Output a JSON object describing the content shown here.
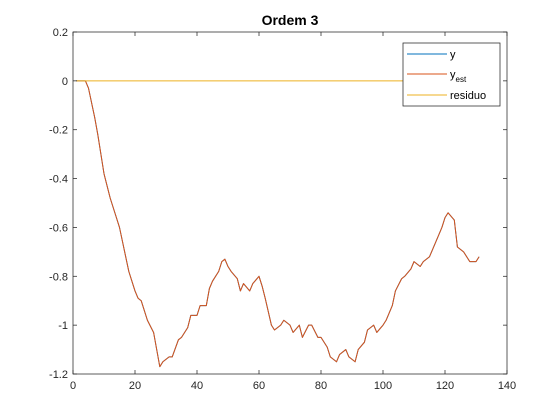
{
  "chart_data": {
    "type": "line",
    "title": "Ordem 3",
    "xlabel": "",
    "ylabel": "",
    "xlim": [
      0,
      140
    ],
    "ylim": [
      -1.2,
      0.2
    ],
    "xticks": [
      0,
      20,
      40,
      60,
      80,
      100,
      120,
      140
    ],
    "xtick_labels": [
      "0",
      "20",
      "40",
      "60",
      "80",
      "100",
      "120",
      "140"
    ],
    "yticks": [
      0.2,
      0,
      -0.2,
      -0.4,
      -0.6,
      -0.8,
      -1,
      -1.2
    ],
    "ytick_labels": [
      "0.2",
      "0",
      "-0.2",
      "-0.4",
      "-0.6",
      "-0.8",
      "-1",
      "-1.2"
    ],
    "grid": false,
    "legend_position": "top-right",
    "x": [
      1,
      4,
      5,
      7,
      8,
      10,
      12,
      14,
      15,
      17,
      18,
      20,
      21,
      22,
      24,
      26,
      27,
      28,
      29,
      31,
      32,
      34,
      35,
      37,
      38,
      40,
      41,
      43,
      44,
      45,
      47,
      48,
      49,
      50,
      51,
      53,
      54,
      55,
      57,
      58,
      60,
      61,
      62,
      64,
      65,
      67,
      68,
      70,
      71,
      73,
      74,
      76,
      77,
      79,
      80,
      82,
      83,
      85,
      86,
      88,
      89,
      91,
      92,
      94,
      95,
      97,
      98,
      100,
      101,
      103,
      104,
      106,
      107,
      109,
      110,
      112,
      113,
      115,
      116,
      118,
      119,
      120,
      121,
      123,
      124,
      126,
      127,
      128,
      130,
      131
    ],
    "series": [
      {
        "name": "y",
        "color": "#0072BD",
        "values": [
          0,
          0,
          -0.03,
          -0.15,
          -0.22,
          -0.38,
          -0.48,
          -0.56,
          -0.6,
          -0.72,
          -0.78,
          -0.86,
          -0.89,
          -0.9,
          -0.98,
          -1.03,
          -1.1,
          -1.17,
          -1.15,
          -1.13,
          -1.13,
          -1.06,
          -1.05,
          -1.01,
          -0.96,
          -0.96,
          -0.92,
          -0.92,
          -0.85,
          -0.82,
          -0.78,
          -0.74,
          -0.73,
          -0.76,
          -0.78,
          -0.81,
          -0.86,
          -0.83,
          -0.86,
          -0.83,
          -0.8,
          -0.84,
          -0.89,
          -1.0,
          -1.02,
          -1.0,
          -0.98,
          -1.0,
          -1.03,
          -1.0,
          -1.05,
          -1.0,
          -1.0,
          -1.05,
          -1.05,
          -1.09,
          -1.13,
          -1.15,
          -1.12,
          -1.1,
          -1.13,
          -1.15,
          -1.1,
          -1.07,
          -1.02,
          -1.0,
          -1.03,
          -1.0,
          -0.98,
          -0.92,
          -0.86,
          -0.81,
          -0.8,
          -0.77,
          -0.74,
          -0.76,
          -0.74,
          -0.72,
          -0.69,
          -0.63,
          -0.6,
          -0.56,
          -0.54,
          -0.57,
          -0.68,
          -0.7,
          -0.72,
          -0.74,
          -0.74,
          -0.72
        ]
      },
      {
        "name": "y_est",
        "color": "#D95319",
        "values": [
          0,
          0,
          -0.03,
          -0.15,
          -0.22,
          -0.38,
          -0.48,
          -0.56,
          -0.6,
          -0.72,
          -0.78,
          -0.86,
          -0.89,
          -0.9,
          -0.98,
          -1.03,
          -1.1,
          -1.17,
          -1.15,
          -1.13,
          -1.13,
          -1.06,
          -1.05,
          -1.01,
          -0.96,
          -0.96,
          -0.92,
          -0.92,
          -0.85,
          -0.82,
          -0.78,
          -0.74,
          -0.73,
          -0.76,
          -0.78,
          -0.81,
          -0.86,
          -0.83,
          -0.86,
          -0.83,
          -0.8,
          -0.84,
          -0.89,
          -1.0,
          -1.02,
          -1.0,
          -0.98,
          -1.0,
          -1.03,
          -1.0,
          -1.05,
          -1.0,
          -1.0,
          -1.05,
          -1.05,
          -1.09,
          -1.13,
          -1.15,
          -1.12,
          -1.1,
          -1.13,
          -1.15,
          -1.1,
          -1.07,
          -1.02,
          -1.0,
          -1.03,
          -1.0,
          -0.98,
          -0.92,
          -0.86,
          -0.81,
          -0.8,
          -0.77,
          -0.74,
          -0.76,
          -0.74,
          -0.72,
          -0.69,
          -0.63,
          -0.6,
          -0.56,
          -0.54,
          -0.57,
          -0.68,
          -0.7,
          -0.72,
          -0.74,
          -0.74,
          -0.72
        ]
      },
      {
        "name": "residuo",
        "color": "#EDB120",
        "values": [
          0,
          0,
          0,
          0,
          0,
          0,
          0,
          0,
          0,
          0,
          0,
          0,
          0,
          0,
          0,
          0,
          0,
          0,
          0,
          0,
          0,
          0,
          0,
          0,
          0,
          0,
          0,
          0,
          0,
          0,
          0,
          0,
          0,
          0,
          0,
          0,
          0,
          0,
          0,
          0,
          0,
          0,
          0,
          0,
          0,
          0,
          0,
          0,
          0,
          0,
          0,
          0,
          0,
          0,
          0,
          0,
          0,
          0,
          0,
          0,
          0,
          0,
          0,
          0,
          0,
          0,
          0,
          0,
          0,
          0,
          0,
          0,
          0,
          0,
          0,
          0,
          0,
          0,
          0,
          0,
          0,
          0,
          0,
          0,
          0,
          0,
          0,
          0,
          0,
          0
        ]
      }
    ],
    "legend": {
      "entries": [
        {
          "series": 0,
          "base": "y",
          "sub": ""
        },
        {
          "series": 1,
          "base": "y",
          "sub": "est"
        },
        {
          "series": 2,
          "base": "residuo",
          "sub": ""
        }
      ]
    }
  }
}
